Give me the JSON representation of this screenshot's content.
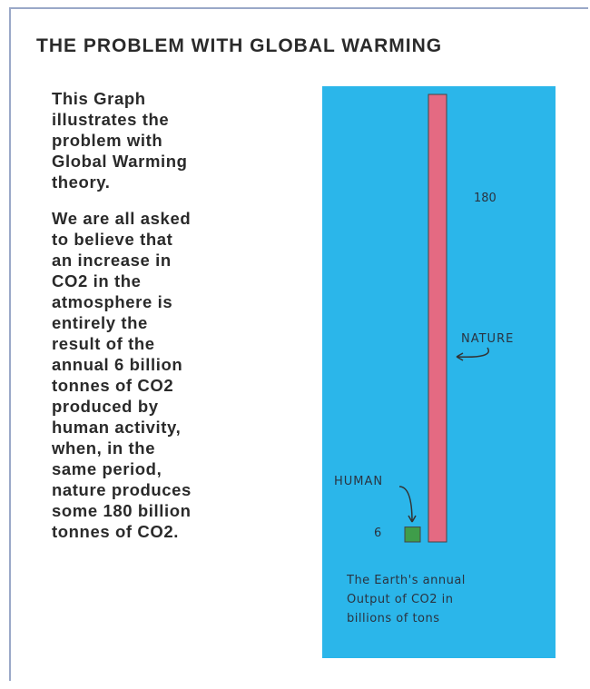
{
  "title": "THE PROBLEM WITH GLOBAL WARMING",
  "paragraphs": [
    [
      "This Graph",
      "illustrates the",
      "problem with",
      "Global Warming",
      "theory."
    ],
    [
      "We are all asked",
      "to believe that",
      "an increase in",
      "CO2 in the",
      "atmosphere is",
      "entirely the",
      "result of the",
      "annual 6 billion",
      "tonnes of CO2",
      "produced by",
      "human activity,",
      "when, in the",
      "same period,",
      "nature produces",
      "some 180 billion",
      "tonnes of CO2."
    ]
  ],
  "chart_data": {
    "type": "bar",
    "categories": [
      "HUMAN",
      "NATURE"
    ],
    "values": [
      6,
      180
    ],
    "colors": [
      "#3f9d4a",
      "#e46a82"
    ],
    "ylim": [
      0,
      180
    ],
    "caption": [
      "The Earth's annual",
      "Output of CO2 in",
      "billions of tons"
    ]
  }
}
